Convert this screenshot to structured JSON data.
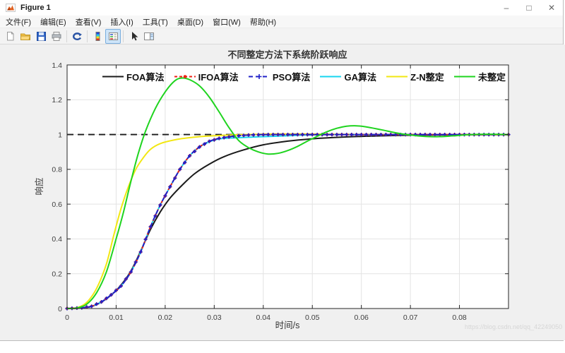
{
  "window": {
    "title": "Figure 1",
    "controls": {
      "minimize": "–",
      "maximize": "□",
      "close": "✕"
    }
  },
  "menu": {
    "items": [
      "文件(F)",
      "编辑(E)",
      "查看(V)",
      "插入(I)",
      "工具(T)",
      "桌面(D)",
      "窗口(W)",
      "帮助(H)"
    ]
  },
  "toolbar": {
    "buttons": [
      "new-document",
      "open-folder",
      "save",
      "print",
      "rotate-3d",
      "insert-colorbar",
      "insert-legend",
      "edit-plot",
      "figure-palette"
    ]
  },
  "watermark": {
    "text": "https://blog.csdn.net/qq_42249050"
  },
  "chart_data": {
    "type": "line",
    "title": "不同整定方法下系统阶跃响应",
    "xlabel": "时间/s",
    "ylabel": "响应",
    "xlim": [
      0,
      0.09
    ],
    "ylim": [
      0,
      1.4
    ],
    "x_ticks": [
      0,
      0.01,
      0.02,
      0.03,
      0.04,
      0.05,
      0.06,
      0.07,
      0.08
    ],
    "x_tick_labels": [
      "0",
      "0.01",
      "0.02",
      "0.03",
      "0.04",
      "0.05",
      "0.06",
      "0.07",
      "0.08"
    ],
    "y_ticks": [
      0,
      0.2,
      0.4,
      0.6,
      0.8,
      1,
      1.2,
      1.4
    ],
    "y_tick_labels": [
      "0",
      "0.2",
      "0.4",
      "0.6",
      "0.8",
      "1",
      "1.2",
      "1.4"
    ],
    "grid": true,
    "legend_position": "north-horizontal",
    "ref_line": {
      "y": 1,
      "color": "#1a1a1a",
      "dash": "9 6"
    },
    "series": [
      {
        "name": "FOA算法",
        "color": "#1a1a1a",
        "line": "solid",
        "marker": "none",
        "points": [
          [
            0,
            0
          ],
          [
            0.003,
            0.003
          ],
          [
            0.005,
            0.012
          ],
          [
            0.007,
            0.037
          ],
          [
            0.009,
            0.078
          ],
          [
            0.011,
            0.135
          ],
          [
            0.013,
            0.215
          ],
          [
            0.015,
            0.33
          ],
          [
            0.017,
            0.455
          ],
          [
            0.019,
            0.555
          ],
          [
            0.021,
            0.635
          ],
          [
            0.0235,
            0.71
          ],
          [
            0.026,
            0.775
          ],
          [
            0.029,
            0.83
          ],
          [
            0.032,
            0.873
          ],
          [
            0.036,
            0.912
          ],
          [
            0.04,
            0.941
          ],
          [
            0.045,
            0.962
          ],
          [
            0.05,
            0.9755
          ],
          [
            0.056,
            0.985
          ],
          [
            0.062,
            0.991
          ],
          [
            0.068,
            0.9955
          ],
          [
            0.074,
            0.9975
          ],
          [
            0.08,
            0.9988
          ],
          [
            0.085,
            0.9995
          ],
          [
            0.09,
            1
          ]
        ]
      },
      {
        "name": "IFOA算法",
        "color": "#ee2015",
        "line": "dash",
        "marker": "dot",
        "points": [
          [
            0,
            0
          ],
          [
            0.003,
            0.004
          ],
          [
            0.005,
            0.013
          ],
          [
            0.007,
            0.038
          ],
          [
            0.009,
            0.079
          ],
          [
            0.011,
            0.13
          ],
          [
            0.013,
            0.21
          ],
          [
            0.015,
            0.325
          ],
          [
            0.017,
            0.47
          ],
          [
            0.019,
            0.595
          ],
          [
            0.021,
            0.7
          ],
          [
            0.023,
            0.8
          ],
          [
            0.025,
            0.878
          ],
          [
            0.027,
            0.929
          ],
          [
            0.029,
            0.961
          ],
          [
            0.031,
            0.978
          ],
          [
            0.034,
            0.991
          ],
          [
            0.037,
            0.997
          ],
          [
            0.041,
            1
          ],
          [
            0.05,
            1
          ],
          [
            0.06,
            1
          ],
          [
            0.07,
            1
          ],
          [
            0.08,
            1
          ],
          [
            0.09,
            1
          ]
        ]
      },
      {
        "name": "PSO算法",
        "color": "#2021c8",
        "line": "dash",
        "marker": "plus",
        "points": [
          [
            0,
            0
          ],
          [
            0.003,
            0.004
          ],
          [
            0.005,
            0.013
          ],
          [
            0.007,
            0.038
          ],
          [
            0.009,
            0.079
          ],
          [
            0.011,
            0.13
          ],
          [
            0.013,
            0.21
          ],
          [
            0.015,
            0.325
          ],
          [
            0.017,
            0.47
          ],
          [
            0.019,
            0.595
          ],
          [
            0.021,
            0.7
          ],
          [
            0.023,
            0.8
          ],
          [
            0.025,
            0.878
          ],
          [
            0.027,
            0.929
          ],
          [
            0.029,
            0.961
          ],
          [
            0.031,
            0.978
          ],
          [
            0.034,
            0.991
          ],
          [
            0.037,
            0.997
          ],
          [
            0.041,
            1
          ],
          [
            0.05,
            1
          ],
          [
            0.06,
            1
          ],
          [
            0.07,
            1
          ],
          [
            0.08,
            1
          ],
          [
            0.09,
            1
          ]
        ]
      },
      {
        "name": "GA算法",
        "color": "#17d6ef",
        "line": "solid",
        "marker": "none",
        "points": [
          [
            0,
            0
          ],
          [
            0.003,
            0.004
          ],
          [
            0.005,
            0.013
          ],
          [
            0.007,
            0.038
          ],
          [
            0.009,
            0.079
          ],
          [
            0.011,
            0.13
          ],
          [
            0.013,
            0.21
          ],
          [
            0.015,
            0.325
          ],
          [
            0.017,
            0.47
          ],
          [
            0.019,
            0.595
          ],
          [
            0.021,
            0.7
          ],
          [
            0.023,
            0.8
          ],
          [
            0.025,
            0.878
          ],
          [
            0.027,
            0.929
          ],
          [
            0.029,
            0.958
          ],
          [
            0.031,
            0.975
          ],
          [
            0.035,
            0.982
          ],
          [
            0.039,
            0.987
          ],
          [
            0.044,
            0.992
          ],
          [
            0.049,
            0.997
          ],
          [
            0.055,
            1
          ],
          [
            0.07,
            1
          ],
          [
            0.09,
            1
          ]
        ]
      },
      {
        "name": "Z-N整定",
        "color": "#f2e713",
        "line": "solid",
        "marker": "none",
        "points": [
          [
            0,
            0
          ],
          [
            0.002,
            0.004
          ],
          [
            0.004,
            0.035
          ],
          [
            0.006,
            0.115
          ],
          [
            0.008,
            0.255
          ],
          [
            0.0095,
            0.42
          ],
          [
            0.011,
            0.575
          ],
          [
            0.0125,
            0.7
          ],
          [
            0.014,
            0.8
          ],
          [
            0.0155,
            0.865
          ],
          [
            0.017,
            0.915
          ],
          [
            0.019,
            0.948
          ],
          [
            0.022,
            0.97
          ],
          [
            0.025,
            0.982
          ],
          [
            0.028,
            0.99
          ],
          [
            0.032,
            0.996
          ],
          [
            0.036,
            1
          ],
          [
            0.042,
            1.003
          ],
          [
            0.048,
            1.003
          ],
          [
            0.055,
            1.001
          ],
          [
            0.065,
            1
          ],
          [
            0.08,
            1
          ],
          [
            0.09,
            1
          ]
        ]
      },
      {
        "name": "未整定",
        "color": "#1fd41f",
        "line": "solid",
        "marker": "none",
        "points": [
          [
            0,
            0
          ],
          [
            0.002,
            0.003
          ],
          [
            0.004,
            0.025
          ],
          [
            0.006,
            0.09
          ],
          [
            0.008,
            0.21
          ],
          [
            0.01,
            0.4
          ],
          [
            0.0115,
            0.555
          ],
          [
            0.013,
            0.73
          ],
          [
            0.0145,
            0.89
          ],
          [
            0.016,
            1.02
          ],
          [
            0.018,
            1.15
          ],
          [
            0.02,
            1.245
          ],
          [
            0.022,
            1.31
          ],
          [
            0.0235,
            1.325
          ],
          [
            0.025,
            1.315
          ],
          [
            0.027,
            1.28
          ],
          [
            0.029,
            1.215
          ],
          [
            0.031,
            1.13
          ],
          [
            0.033,
            1.04
          ],
          [
            0.035,
            0.965
          ],
          [
            0.037,
            0.925
          ],
          [
            0.039,
            0.9
          ],
          [
            0.041,
            0.888
          ],
          [
            0.043,
            0.892
          ],
          [
            0.045,
            0.908
          ],
          [
            0.047,
            0.932
          ],
          [
            0.049,
            0.962
          ],
          [
            0.051,
            0.99
          ],
          [
            0.053,
            1.016
          ],
          [
            0.055,
            1.036
          ],
          [
            0.057,
            1.048
          ],
          [
            0.059,
            1.05
          ],
          [
            0.061,
            1.044
          ],
          [
            0.064,
            1.028
          ],
          [
            0.067,
            1.01
          ],
          [
            0.07,
            0.997
          ],
          [
            0.073,
            0.989
          ],
          [
            0.076,
            0.988
          ],
          [
            0.079,
            0.993
          ],
          [
            0.082,
            0.999
          ],
          [
            0.086,
            1.002
          ],
          [
            0.09,
            1
          ]
        ]
      }
    ]
  }
}
